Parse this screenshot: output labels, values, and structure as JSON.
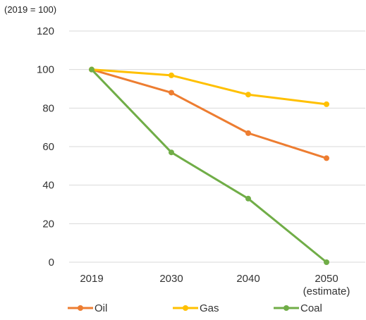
{
  "chart_data": {
    "type": "line",
    "unit_label": "(2019 = 100)",
    "categories": [
      "2019",
      "2030",
      "2040",
      "2050"
    ],
    "category_sublabels": [
      "",
      "",
      "",
      "(estimate)"
    ],
    "ylim": [
      0,
      120
    ],
    "yticks": [
      0,
      20,
      40,
      60,
      80,
      100,
      120
    ],
    "grid": true,
    "legend_position": "bottom",
    "series": [
      {
        "name": "Oil",
        "color": "#ed7d31",
        "values": [
          100,
          88,
          67,
          54
        ]
      },
      {
        "name": "Gas",
        "color": "#ffc000",
        "values": [
          100,
          97,
          87,
          82
        ]
      },
      {
        "name": "Coal",
        "color": "#70ad47",
        "values": [
          100,
          57,
          33,
          0
        ]
      }
    ]
  }
}
